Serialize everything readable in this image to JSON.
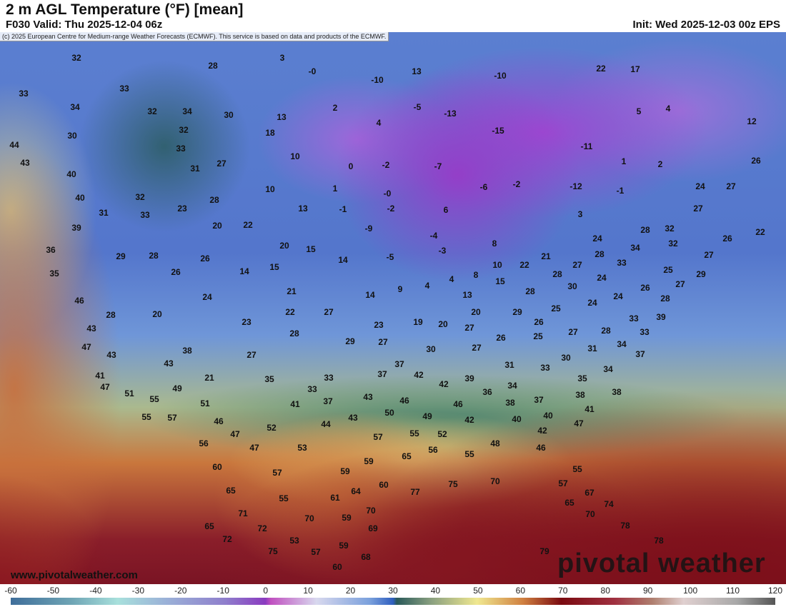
{
  "header": {
    "title": "2 m AGL Temperature (°F) [mean]",
    "valid": "F030 Valid: Thu 2025-12-04 06z",
    "init": "Init: Wed 2025-12-03 00z EPS",
    "credit": "(c) 2025 European Centre for Medium-range Weather Forecasts (ECMWF). This service is based on data and products of the ECMWF."
  },
  "map": {
    "units": "°F",
    "temperature_labels": [
      "32",
      "28",
      "3",
      "-0",
      "13",
      "-10",
      "22",
      "17",
      "33",
      "33",
      "-10",
      "34",
      "32",
      "34",
      "30",
      "13",
      "2",
      "-5",
      "-13",
      "5",
      "4",
      "12",
      "30",
      "32",
      "18",
      "4",
      "-15",
      "44",
      "33",
      "10",
      "-11",
      "1",
      "26",
      "43",
      "31",
      "27",
      "0",
      "-2",
      "-7",
      "2",
      "40",
      "40",
      "10",
      "1",
      "-0",
      "-2",
      "-6",
      "-12",
      "-1",
      "24",
      "27",
      "32",
      "28",
      "31",
      "33",
      "23",
      "13",
      "-1",
      "-2",
      "6",
      "27",
      "3",
      "39",
      "20",
      "22",
      "-9",
      "-4",
      "28",
      "32",
      "22",
      "26",
      "20",
      "15",
      "8",
      "32",
      "24",
      "36",
      "29",
      "28",
      "26",
      "14",
      "15",
      "14",
      "-5",
      "-3",
      "22",
      "21",
      "34",
      "28",
      "10",
      "27",
      "33",
      "27",
      "35",
      "26",
      "4",
      "4",
      "8",
      "15",
      "28",
      "24",
      "25",
      "29",
      "30",
      "27",
      "46",
      "24",
      "21",
      "14",
      "9",
      "13",
      "28",
      "24",
      "24",
      "26",
      "28",
      "39",
      "28",
      "20",
      "22",
      "27",
      "20",
      "29",
      "25",
      "26",
      "33",
      "43",
      "23",
      "28",
      "23",
      "19",
      "20",
      "27",
      "27",
      "28",
      "33",
      "47",
      "29",
      "27",
      "26",
      "25",
      "34",
      "43",
      "38",
      "27",
      "30",
      "27",
      "31",
      "30",
      "37",
      "41",
      "43",
      "21",
      "35",
      "33",
      "37",
      "37",
      "42",
      "39",
      "31",
      "33",
      "35",
      "34",
      "47",
      "51",
      "49",
      "55",
      "33",
      "42",
      "36",
      "34",
      "37",
      "38",
      "38",
      "51",
      "41",
      "37",
      "43",
      "46",
      "55",
      "57",
      "46",
      "43",
      "50",
      "49",
      "46",
      "42",
      "38",
      "40",
      "41",
      "47",
      "52",
      "44",
      "40",
      "42",
      "47",
      "56",
      "53",
      "57",
      "55",
      "52",
      "47",
      "48",
      "46",
      "55",
      "60",
      "59",
      "65",
      "56",
      "59",
      "57",
      "65",
      "64",
      "60",
      "77",
      "75",
      "70",
      "55",
      "57",
      "67",
      "55",
      "61",
      "65",
      "74",
      "71",
      "70",
      "59",
      "70",
      "70",
      "65",
      "72",
      "69",
      "78",
      "72",
      "53",
      "59",
      "78",
      "75",
      "57",
      "68",
      "79",
      "60"
    ]
  },
  "footer": {
    "website": "www.pivotalweather.com",
    "logo": "pivotal weather"
  },
  "colorbar": {
    "ticks": [
      "-60",
      "-50",
      "-40",
      "-30",
      "-20",
      "-10",
      "0",
      "10",
      "20",
      "30",
      "40",
      "50",
      "60",
      "70",
      "80",
      "90",
      "100",
      "110",
      "120"
    ],
    "min": -60,
    "max": 120
  }
}
